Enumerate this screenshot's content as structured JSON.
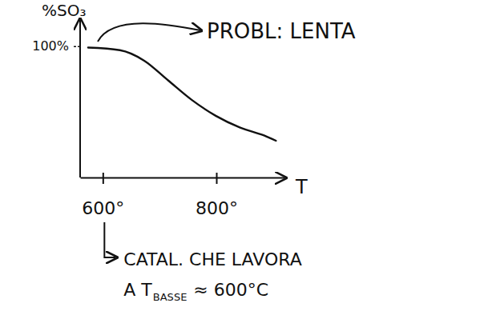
{
  "chart_data": {
    "type": "line",
    "ylabel": "%SO₃",
    "xlabel": "T",
    "x": [
      574,
      630,
      673,
      715,
      757,
      799,
      842,
      884,
      905
    ],
    "values": [
      99,
      97,
      89,
      74,
      59,
      47,
      38,
      32,
      28
    ],
    "xlim": [
      560,
      920
    ],
    "xticks": [
      {
        "value": 600,
        "label": "600°"
      },
      {
        "value": 800,
        "label": "800°"
      }
    ],
    "ylim": [
      0,
      120
    ],
    "yticks": [
      {
        "value": 100,
        "label": "100%"
      }
    ],
    "grid": false,
    "color": "#111111",
    "annotations": [
      {
        "text": "PROBL: LENTA"
      },
      {
        "line1": "CATAL. CHE LAVORA",
        "line2": [
          "A T",
          "BASSE",
          "≈ 600°C"
        ]
      }
    ]
  }
}
